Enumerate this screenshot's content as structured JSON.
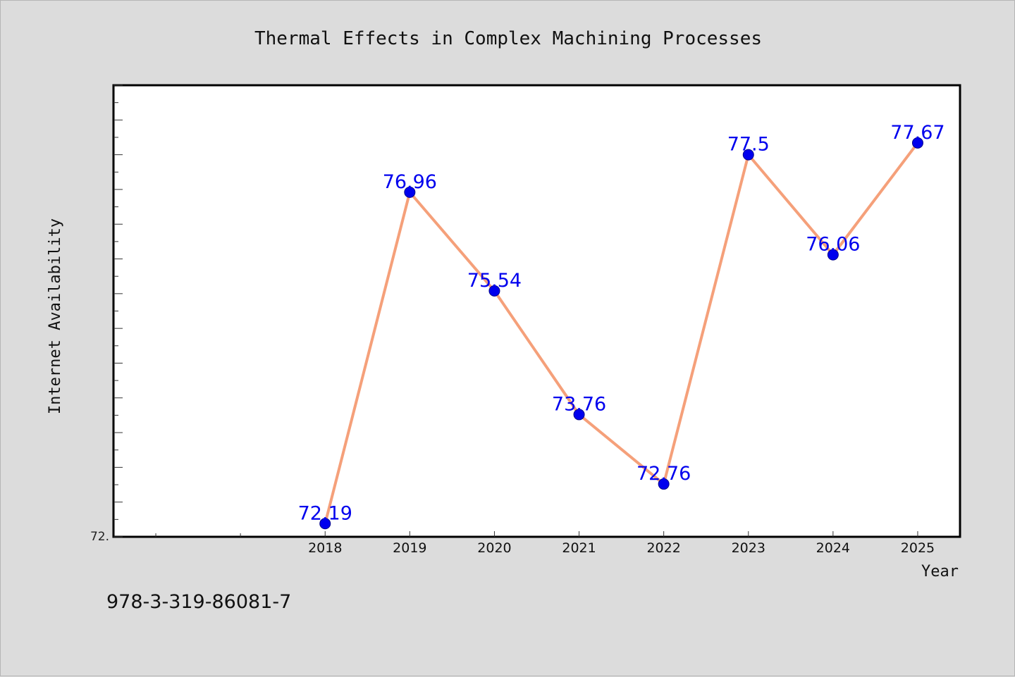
{
  "chart_data": {
    "type": "line",
    "title": "Thermal Effects in Complex Machining Processes",
    "xlabel": "Year",
    "ylabel": "Internet Availability",
    "categories": [
      "2018",
      "2019",
      "2020",
      "2021",
      "2022",
      "2023",
      "2024",
      "2025"
    ],
    "series": [
      {
        "values": [
          72.19,
          76.96,
          75.54,
          73.76,
          72.76,
          77.5,
          76.06,
          77.67
        ]
      }
    ],
    "data_labels": [
      "72.19",
      "76.96",
      "75.54",
      "73.76",
      "72.76",
      "77.5",
      "76.06",
      "77.67"
    ],
    "y_tick_label": "72.",
    "ylim": [
      72.0,
      78.5
    ],
    "xlim": [
      2015.5,
      2025.5
    ],
    "grid": false,
    "colors": {
      "line": "#f5a07a",
      "marker": "#0000ee",
      "marker_edge": "#00008b",
      "data_label": "#0000ee",
      "background": "#dcdcdc",
      "plot_area": "#ffffff"
    }
  },
  "footer": {
    "isbn": "978-3-319-86081-7"
  }
}
